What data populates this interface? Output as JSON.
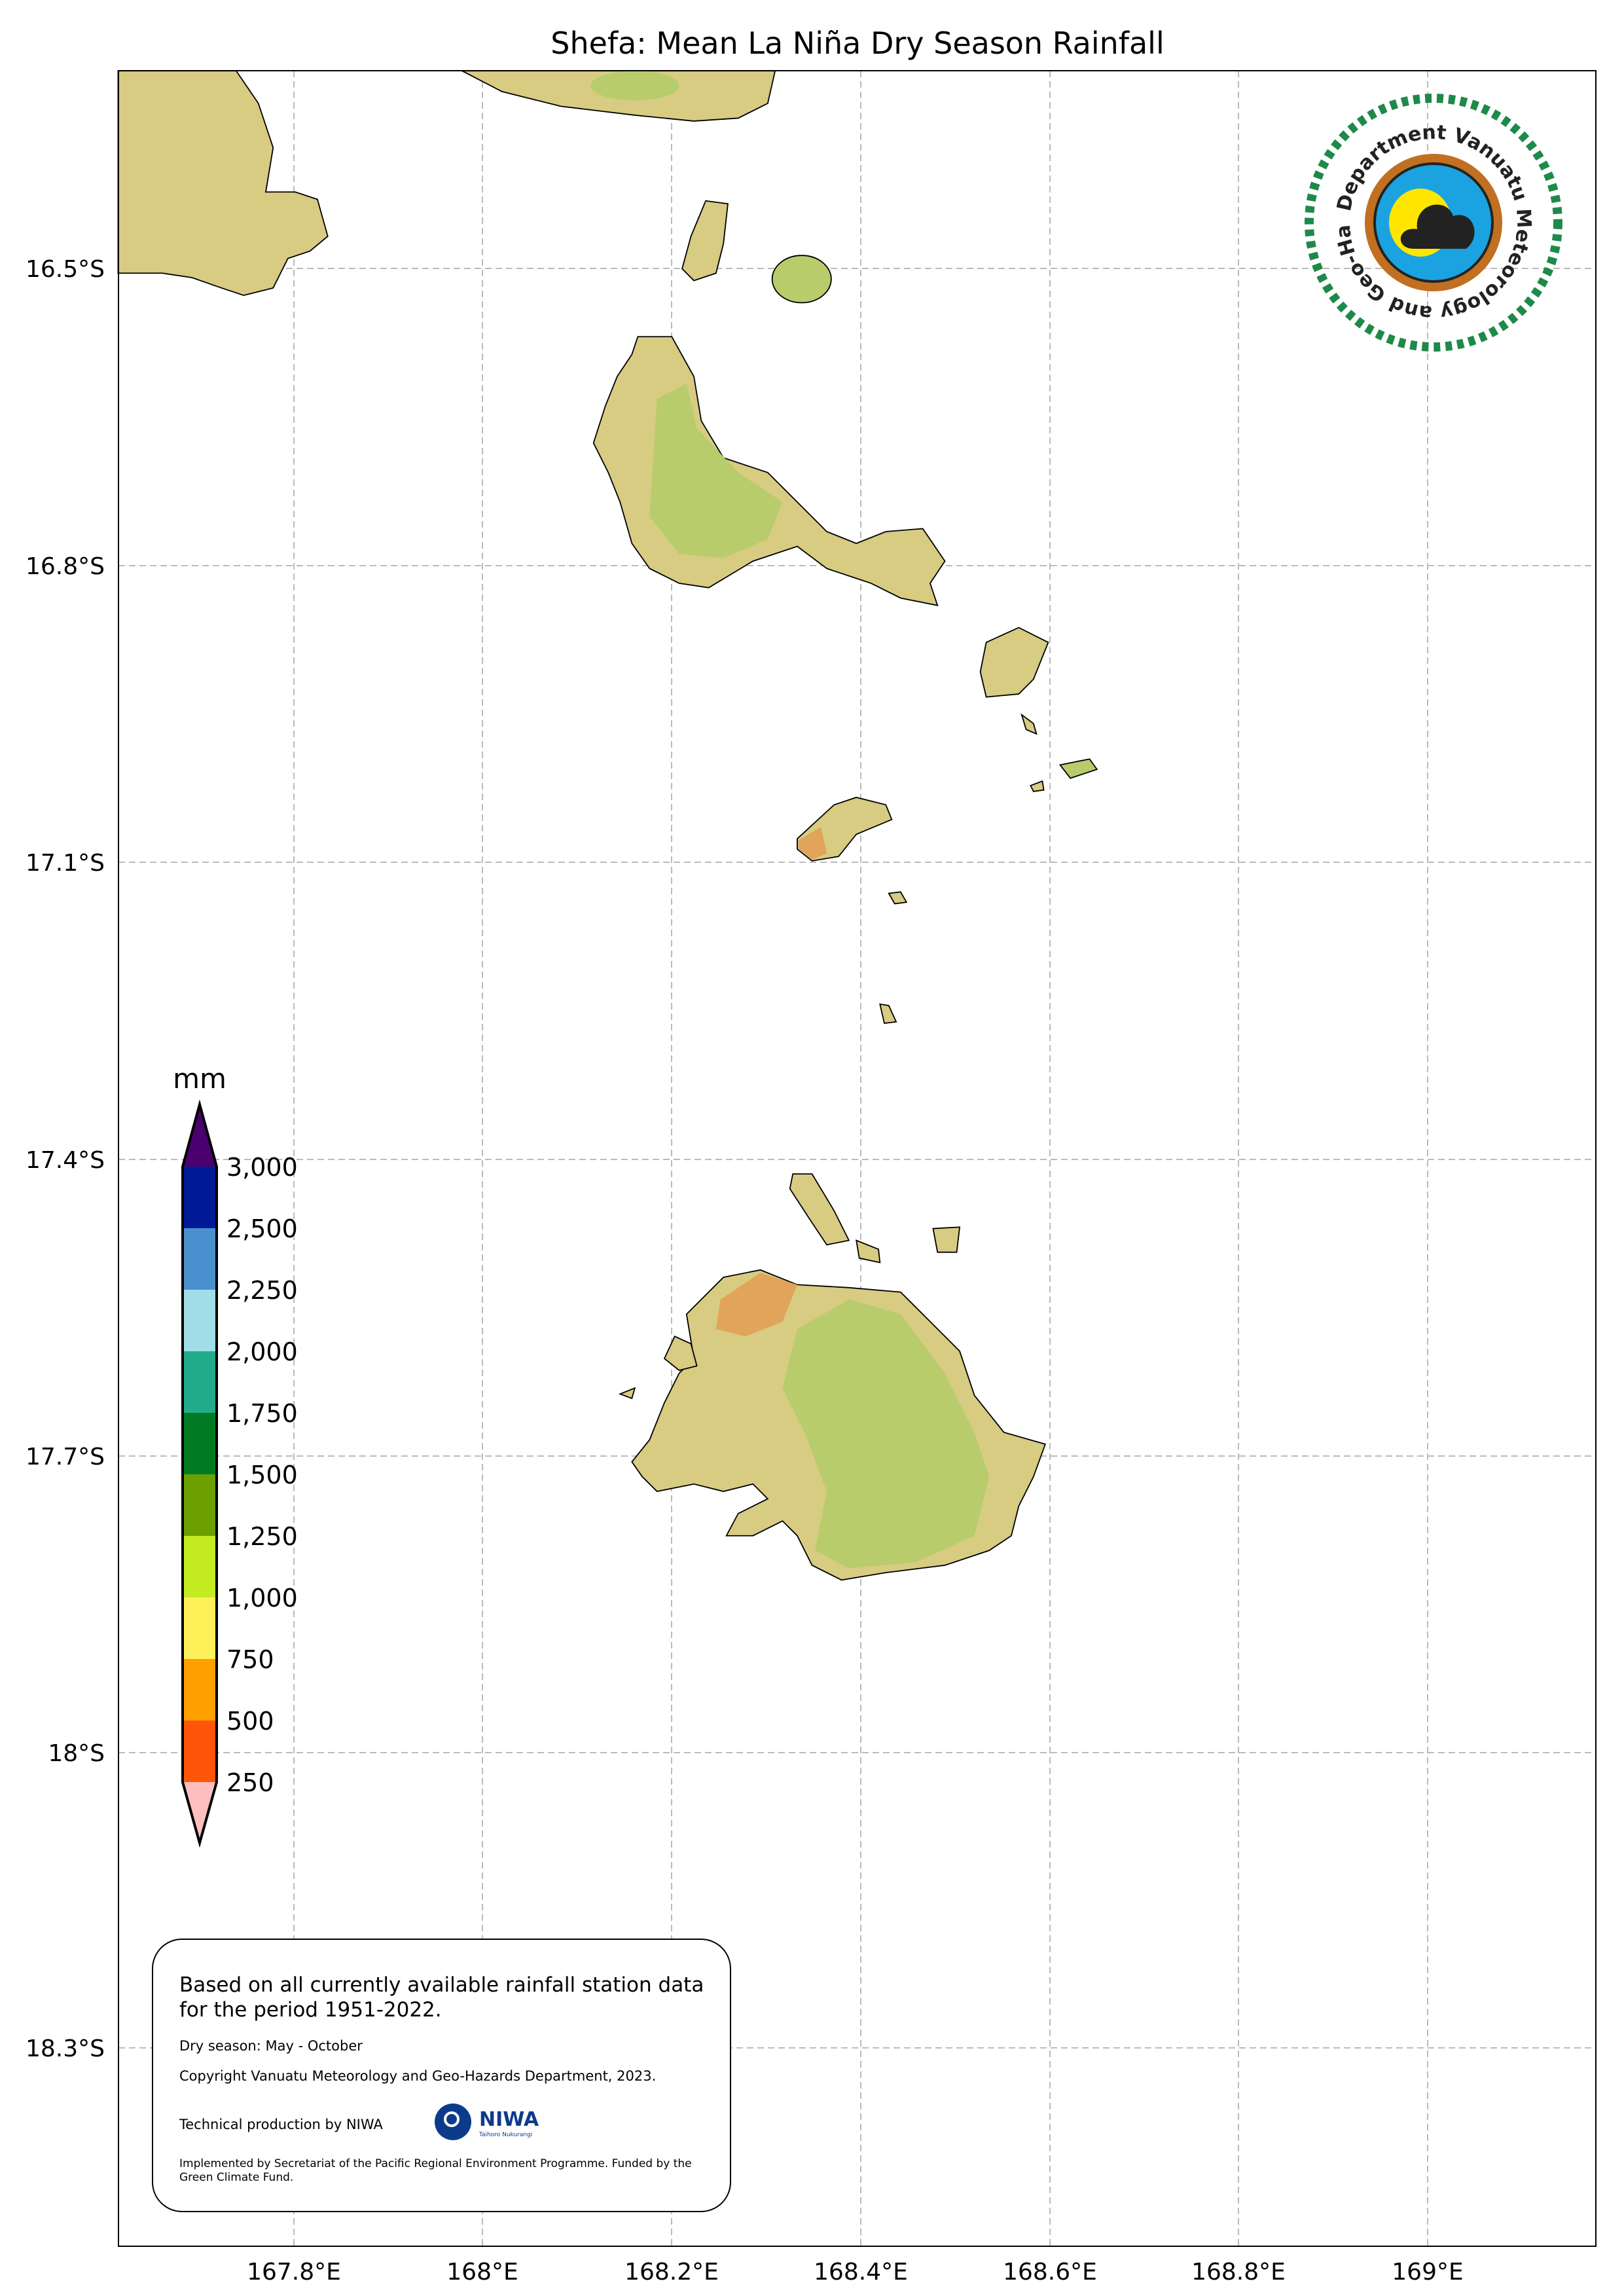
{
  "title": "Shefa: Mean La Niña Dry Season Rainfall",
  "axes": {
    "lat_labels": [
      "16.5°S",
      "16.8°S",
      "17.1°S",
      "17.4°S",
      "17.7°S",
      "18°S",
      "18.3°S"
    ],
    "lon_labels": [
      "167.8°E",
      "168°E",
      "168.2°E",
      "168.4°E",
      "168.6°E",
      "168.8°E",
      "169°E"
    ],
    "grid": true
  },
  "colorbar": {
    "unit": "mm",
    "labels": [
      "3,000",
      "2,500",
      "2,250",
      "2,000",
      "1,750",
      "1,500",
      "1,250",
      "1,000",
      "750",
      "500",
      "250"
    ],
    "extend_max_color": "#4b0070",
    "colors_top_to_bottom": [
      "#001a96",
      "#4a90cf",
      "#a2dee8",
      "#22ac8c",
      "#007a23",
      "#6ca000",
      "#c2ec21",
      "#fff05a",
      "#ff9f00",
      "#ff5509"
    ],
    "extend_min_color": "#ffbfbf"
  },
  "land_colors": {
    "base": "#d8cb82",
    "green": "#b8cc6c",
    "orange": "#e0a45a",
    "outline": "#000000"
  },
  "info": {
    "line1": "Based on all currently available rainfall station data for the period 1951-2022.",
    "season": "Dry season: May - October",
    "copyright": "Copyright Vanuatu Meteorology and Geo-Hazards Department, 2023.",
    "technical": "Technical production by NIWA",
    "funding": "Implemented by Secretariat of the Pacific Regional Environment Programme. Funded by the Green Climate Fund.",
    "niwa_logo": "NIWA",
    "niwa_sub": "Taihoro Nukurangi"
  },
  "logo": {
    "text": "Department Vanuatu Meteorology and Geo-Hazards",
    "ring_color": "#1e8a4a",
    "inner_color": "#1aa3e0"
  }
}
